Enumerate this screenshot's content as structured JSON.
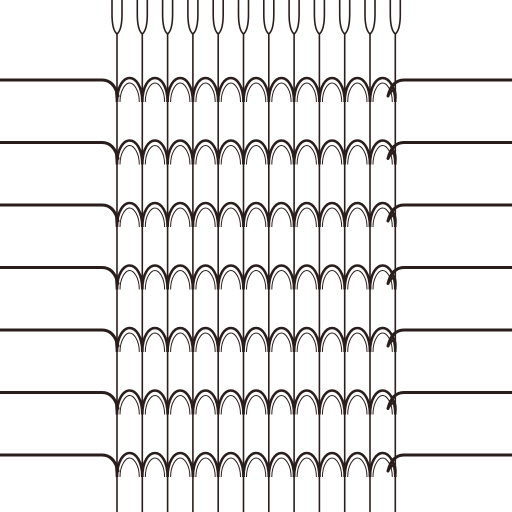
{
  "figure": {
    "type": "line-pattern",
    "stroke_color": "#2a1e1c",
    "background_color": "#ffffff",
    "vertical_line_count": 12,
    "horizontal_line_count": 7
  }
}
